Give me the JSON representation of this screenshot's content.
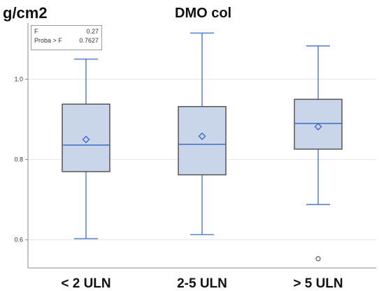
{
  "chart_data": {
    "type": "boxplot",
    "title": "DMO col",
    "ylabel": "g/cm2",
    "ylim": [
      0.53,
      1.14
    ],
    "yticks": [
      "0.6",
      "0.8",
      "1.0"
    ],
    "ytick_values": [
      0.6,
      0.8,
      1.0
    ],
    "grid": "horizontal",
    "categories": [
      "< 2 ULN",
      "2-5 ULN",
      "> 5 ULN"
    ],
    "boxes": [
      {
        "label": "< 2 ULN",
        "whisker_low": 0.603,
        "q1": 0.77,
        "median": 0.836,
        "q3": 0.938,
        "whisker_high": 1.05,
        "mean": 0.85,
        "outliers": []
      },
      {
        "label": "2-5 ULN",
        "whisker_low": 0.613,
        "q1": 0.762,
        "median": 0.838,
        "q3": 0.932,
        "whisker_high": 1.115,
        "mean": 0.858,
        "outliers": []
      },
      {
        "label": "> 5 ULN",
        "whisker_low": 0.688,
        "q1": 0.826,
        "median": 0.89,
        "q3": 0.95,
        "whisker_high": 1.083,
        "mean": 0.882,
        "outliers": [
          0.553
        ]
      }
    ],
    "stats_box": {
      "rows": [
        {
          "key": "F",
          "value": "0.27"
        },
        {
          "key": "Proba > F",
          "value": "0.7627"
        }
      ]
    },
    "colors": {
      "box_fill": "#c9d6ea",
      "box_stroke": "#555555",
      "line": "#3b6cc7",
      "grid": "#e6e6e6"
    }
  }
}
